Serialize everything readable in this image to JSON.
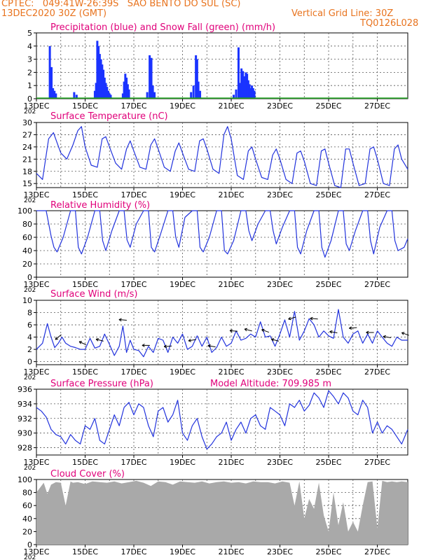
{
  "header": {
    "line1": "CPTEC:   049:41W-26:39S   SAO BENTO DO SUL (SC)",
    "line2": "13DEC2020 30Z (GMT)",
    "grid_note": "Vertical Grid Line: 30Z",
    "code": "TQ0126L028"
  },
  "colors": {
    "header": "#e8731e",
    "title": "#e0007a",
    "line": "#2233dd",
    "precip": "#1a33ff",
    "snow": "#1f9e1f",
    "cloud": "#a9a9a9",
    "wind_arrow": "#000000"
  },
  "x_axis": {
    "labels": [
      "13DEC",
      "15DEC",
      "17DEC",
      "19DEC",
      "21DEC",
      "23DEC",
      "25DEC",
      "27DEC"
    ],
    "label_days": [
      0,
      2,
      4,
      6,
      8,
      10,
      12,
      14
    ],
    "gridlines_days": [
      1,
      2,
      3,
      4,
      5,
      6,
      7,
      8,
      9,
      10,
      11,
      12,
      13,
      14
    ],
    "year_label": "202"
  },
  "chart_data": [
    {
      "type": "bar",
      "title": "Precipitation (blue) and Snow Fall (green) (mm/h)",
      "ylim": [
        0,
        5
      ],
      "yticks": [
        "0",
        "1",
        "2",
        "3",
        "4",
        "5"
      ],
      "series": [
        {
          "name": "Precipitation",
          "points": [
            [
              0.55,
              4.0
            ],
            [
              0.62,
              2.4
            ],
            [
              0.68,
              0.8
            ],
            [
              0.74,
              0.6
            ],
            [
              0.8,
              0.4
            ],
            [
              1.55,
              0.5
            ],
            [
              1.65,
              0.3
            ],
            [
              2.4,
              0.6
            ],
            [
              2.45,
              1.2
            ],
            [
              2.5,
              4.4
            ],
            [
              2.55,
              4.0
            ],
            [
              2.6,
              3.4
            ],
            [
              2.65,
              3.0
            ],
            [
              2.7,
              2.6
            ],
            [
              2.75,
              2.2
            ],
            [
              2.8,
              1.6
            ],
            [
              2.85,
              1.2
            ],
            [
              2.9,
              0.9
            ],
            [
              2.95,
              0.6
            ],
            [
              3.0,
              0.4
            ],
            [
              3.05,
              0.3
            ],
            [
              3.55,
              0.4
            ],
            [
              3.6,
              1.3
            ],
            [
              3.65,
              1.9
            ],
            [
              3.7,
              1.6
            ],
            [
              3.75,
              1.1
            ],
            [
              3.8,
              0.7
            ],
            [
              4.55,
              0.5
            ],
            [
              4.65,
              3.3
            ],
            [
              4.72,
              3.1
            ],
            [
              4.78,
              1.0
            ],
            [
              4.85,
              0.5
            ],
            [
              6.35,
              0.5
            ],
            [
              6.45,
              1.0
            ],
            [
              6.55,
              3.3
            ],
            [
              6.6,
              3.0
            ],
            [
              6.65,
              1.3
            ],
            [
              6.72,
              0.6
            ],
            [
              8.1,
              0.3
            ],
            [
              8.2,
              0.7
            ],
            [
              8.3,
              3.9
            ],
            [
              8.35,
              1.2
            ],
            [
              8.42,
              2.3
            ],
            [
              8.48,
              2.1
            ],
            [
              8.55,
              1.7
            ],
            [
              8.6,
              2.0
            ],
            [
              8.65,
              1.9
            ],
            [
              8.7,
              1.4
            ],
            [
              8.75,
              1.1
            ],
            [
              8.8,
              0.8
            ],
            [
              8.85,
              1.0
            ],
            [
              8.9,
              0.8
            ],
            [
              8.95,
              0.6
            ]
          ]
        },
        {
          "name": "Snow Fall",
          "points": []
        }
      ]
    },
    {
      "type": "line",
      "title": "Surface Temperature (nC)",
      "ylim": [
        14,
        30
      ],
      "yticks": [
        "15",
        "18",
        "21",
        "24",
        "27",
        "30"
      ],
      "x": [
        0,
        0.25,
        0.5,
        0.7,
        0.85,
        1.0,
        1.25,
        1.5,
        1.7,
        1.85,
        2.0,
        2.25,
        2.5,
        2.7,
        2.85,
        3.0,
        3.25,
        3.5,
        3.7,
        3.85,
        4.0,
        4.25,
        4.5,
        4.7,
        4.85,
        5.0,
        5.25,
        5.5,
        5.7,
        5.85,
        6.0,
        6.25,
        6.5,
        6.7,
        6.85,
        7.0,
        7.25,
        7.5,
        7.7,
        7.85,
        8.0,
        8.25,
        8.5,
        8.7,
        8.85,
        9.0,
        9.25,
        9.5,
        9.7,
        9.85,
        10.0,
        10.25,
        10.5,
        10.7,
        10.85,
        11.0,
        11.25,
        11.5,
        11.7,
        11.85,
        12.0,
        12.25,
        12.5,
        12.7,
        12.85,
        13.0,
        13.25,
        13.5,
        13.7,
        13.85,
        14.0,
        14.25,
        14.5,
        14.7,
        14.85,
        15.0,
        15.25
      ],
      "values": [
        17.5,
        16.0,
        26.0,
        27.5,
        25.0,
        22.5,
        21.0,
        24.5,
        28.0,
        29.0,
        24.0,
        19.5,
        19.0,
        26.0,
        26.5,
        24.0,
        20.0,
        18.5,
        23.5,
        25.5,
        23.0,
        19.0,
        18.5,
        24.5,
        26.0,
        23.5,
        19.0,
        18.0,
        23.0,
        25.0,
        22.5,
        18.5,
        18.0,
        25.5,
        26.0,
        23.5,
        18.5,
        17.5,
        27.0,
        29.0,
        26.0,
        17.0,
        16.0,
        23.0,
        24.0,
        21.0,
        16.5,
        16.0,
        22.0,
        23.5,
        21.0,
        16.0,
        15.0,
        22.5,
        23.0,
        20.5,
        15.0,
        14.5,
        23.0,
        23.5,
        20.0,
        14.5,
        14.0,
        23.5,
        23.5,
        20.0,
        14.5,
        15.0,
        23.5,
        24.0,
        21.0,
        15.0,
        14.5,
        23.5,
        24.5,
        21.0,
        18.5
      ]
    },
    {
      "type": "line",
      "title": "Relative Humidity (%)",
      "ylim": [
        0,
        100
      ],
      "yticks": [
        "0",
        "20",
        "40",
        "60",
        "80",
        "100"
      ],
      "x": [
        0,
        0.4,
        0.6,
        0.72,
        0.85,
        1.1,
        1.4,
        1.6,
        1.72,
        1.85,
        2.1,
        2.4,
        2.6,
        2.72,
        2.85,
        3.1,
        3.4,
        3.6,
        3.72,
        3.85,
        4.1,
        4.4,
        4.6,
        4.72,
        4.85,
        5.1,
        5.4,
        5.6,
        5.72,
        5.85,
        6.1,
        6.4,
        6.6,
        6.72,
        6.85,
        7.1,
        7.4,
        7.6,
        7.72,
        7.85,
        8.1,
        8.4,
        8.6,
        8.72,
        8.85,
        9.1,
        9.4,
        9.6,
        9.72,
        9.85,
        10.1,
        10.4,
        10.6,
        10.72,
        10.85,
        11.1,
        11.4,
        11.6,
        11.72,
        11.85,
        12.1,
        12.4,
        12.6,
        12.72,
        12.85,
        13.1,
        13.4,
        13.6,
        13.72,
        13.85,
        14.1,
        14.4,
        14.6,
        14.72,
        14.85,
        15.1,
        15.25
      ],
      "values": [
        100,
        100,
        62,
        45,
        38,
        60,
        100,
        100,
        45,
        35,
        60,
        100,
        100,
        55,
        40,
        70,
        100,
        100,
        56,
        45,
        80,
        100,
        100,
        45,
        38,
        65,
        100,
        100,
        60,
        45,
        90,
        100,
        100,
        45,
        38,
        60,
        100,
        100,
        40,
        35,
        55,
        100,
        100,
        70,
        55,
        80,
        100,
        100,
        70,
        50,
        75,
        100,
        100,
        45,
        35,
        70,
        100,
        100,
        45,
        30,
        55,
        100,
        100,
        50,
        40,
        70,
        100,
        100,
        55,
        35,
        75,
        100,
        100,
        55,
        40,
        45,
        58
      ]
    },
    {
      "type": "line",
      "title": "Surface Wind (m/s)",
      "ylim": [
        -0.5,
        10
      ],
      "yticks": [
        "0",
        "2",
        "4",
        "6",
        "8",
        "10"
      ],
      "x": [
        0,
        0.25,
        0.45,
        0.6,
        0.75,
        0.9,
        1.05,
        1.2,
        1.4,
        1.6,
        1.8,
        2.0,
        2.2,
        2.4,
        2.6,
        2.8,
        3.0,
        3.2,
        3.4,
        3.55,
        3.7,
        3.85,
        4.0,
        4.2,
        4.4,
        4.6,
        4.8,
        5.0,
        5.2,
        5.4,
        5.6,
        5.8,
        6.0,
        6.2,
        6.4,
        6.6,
        6.8,
        7.0,
        7.2,
        7.4,
        7.6,
        7.8,
        8.0,
        8.2,
        8.4,
        8.6,
        8.8,
        9.0,
        9.2,
        9.4,
        9.6,
        9.8,
        10.0,
        10.2,
        10.4,
        10.6,
        10.8,
        11.0,
        11.2,
        11.4,
        11.6,
        11.8,
        12.0,
        12.2,
        12.4,
        12.6,
        12.8,
        13.0,
        13.2,
        13.4,
        13.6,
        13.8,
        14.0,
        14.2,
        14.4,
        14.6,
        14.8,
        15.0,
        15.25
      ],
      "values": [
        2.0,
        3.0,
        6.2,
        4.0,
        2.3,
        3.0,
        4.0,
        3.0,
        2.5,
        2.3,
        2.0,
        2.0,
        3.8,
        2.2,
        2.5,
        4.5,
        2.8,
        1.0,
        2.5,
        5.8,
        1.5,
        3.5,
        2.0,
        1.8,
        0.8,
        2.5,
        1.5,
        3.8,
        3.5,
        1.5,
        4.0,
        3.0,
        4.5,
        2.0,
        2.5,
        4.2,
        2.5,
        4.0,
        1.5,
        2.3,
        4.0,
        2.5,
        3.0,
        5.0,
        3.5,
        3.8,
        4.5,
        4.0,
        6.5,
        4.0,
        4.2,
        2.5,
        4.5,
        6.8,
        4.0,
        8.2,
        3.5,
        5.0,
        7.0,
        6.0,
        4.0,
        5.0,
        4.2,
        3.8,
        8.5,
        4.0,
        3.0,
        4.5,
        5.0,
        3.0,
        4.5,
        3.0,
        5.0,
        4.0,
        3.0,
        2.5,
        4.0,
        3.5,
        3.5
      ],
      "arrows": [
        [
          0.9,
          -40
        ],
        [
          1.9,
          25
        ],
        [
          2.6,
          15
        ],
        [
          3.55,
          5
        ],
        [
          4.5,
          0
        ],
        [
          5.4,
          -5
        ],
        [
          6.4,
          -10
        ],
        [
          7.2,
          10
        ],
        [
          8.1,
          5
        ],
        [
          8.7,
          15
        ],
        [
          9.4,
          20
        ],
        [
          9.8,
          15
        ],
        [
          10.5,
          -15
        ],
        [
          11.4,
          5
        ],
        [
          12.2,
          10
        ],
        [
          13.0,
          -5
        ],
        [
          13.7,
          0
        ],
        [
          14.4,
          10
        ],
        [
          15.15,
          20
        ]
      ],
      "arrow_note": "wind direction arrows: [day, angle in degrees counter-clockwise from west-pointing]"
    },
    {
      "type": "line",
      "title": "Surface Pressure (hPa)",
      "annotation": "Model Altitude: 709.985  m",
      "ylim": [
        927,
        936
      ],
      "yticks": [
        "928",
        "930",
        "932",
        "934",
        "936"
      ],
      "x": [
        0,
        0.2,
        0.4,
        0.6,
        0.8,
        1.0,
        1.2,
        1.4,
        1.6,
        1.8,
        2.0,
        2.2,
        2.4,
        2.6,
        2.8,
        3.0,
        3.2,
        3.4,
        3.6,
        3.8,
        4.0,
        4.2,
        4.4,
        4.6,
        4.8,
        5.0,
        5.2,
        5.4,
        5.6,
        5.8,
        6.0,
        6.2,
        6.4,
        6.6,
        6.8,
        7.0,
        7.2,
        7.4,
        7.6,
        7.8,
        8.0,
        8.2,
        8.4,
        8.6,
        8.8,
        9.0,
        9.2,
        9.4,
        9.6,
        9.8,
        10.0,
        10.2,
        10.4,
        10.6,
        10.8,
        11.0,
        11.2,
        11.4,
        11.6,
        11.8,
        12.0,
        12.2,
        12.4,
        12.6,
        12.8,
        13.0,
        13.2,
        13.4,
        13.6,
        13.8,
        14.0,
        14.2,
        14.4,
        14.6,
        14.8,
        15.0,
        15.25
      ],
      "values": [
        933.5,
        933.0,
        932.2,
        930.5,
        929.8,
        929.5,
        928.5,
        929.8,
        929.0,
        928.5,
        931.0,
        930.5,
        932.0,
        929.0,
        928.5,
        930.5,
        932.5,
        931.0,
        933.5,
        934.2,
        932.5,
        934.0,
        933.5,
        931.0,
        929.5,
        933.0,
        933.5,
        931.5,
        932.5,
        934.5,
        930.0,
        929.0,
        931.0,
        932.0,
        929.5,
        927.8,
        928.5,
        929.5,
        930.0,
        931.5,
        929.0,
        930.5,
        931.5,
        930.0,
        932.0,
        932.5,
        931.0,
        930.5,
        933.5,
        933.0,
        932.5,
        931.0,
        934.0,
        933.5,
        934.5,
        933.0,
        933.8,
        935.5,
        934.8,
        933.5,
        935.8,
        935.0,
        934.0,
        935.5,
        934.8,
        933.0,
        932.5,
        934.5,
        933.5,
        930.0,
        931.5,
        930.0,
        931.0,
        930.5,
        929.5,
        928.5,
        930.5
      ]
    },
    {
      "type": "area",
      "title": "Cloud Cover (%)",
      "ylim": [
        0,
        100
      ],
      "yticks": [
        "0",
        "20",
        "40",
        "60",
        "80",
        "100"
      ],
      "x": [
        0,
        0.3,
        0.45,
        0.6,
        0.8,
        1.0,
        1.2,
        1.4,
        1.5,
        1.7,
        2.0,
        2.3,
        2.6,
        2.9,
        3.2,
        3.5,
        3.8,
        4.1,
        4.4,
        4.7,
        5.0,
        5.3,
        5.6,
        5.9,
        6.2,
        6.5,
        6.8,
        7.1,
        7.4,
        7.7,
        8.0,
        8.3,
        8.6,
        8.9,
        9.2,
        9.5,
        9.8,
        10.1,
        10.4,
        10.6,
        10.8,
        11.0,
        11.2,
        11.4,
        11.6,
        11.8,
        12.0,
        12.2,
        12.4,
        12.6,
        12.8,
        13.0,
        13.2,
        13.4,
        13.6,
        13.8,
        14.0,
        14.2,
        14.4,
        14.6,
        14.8,
        15.0,
        15.25
      ],
      "values": [
        80,
        95,
        78,
        92,
        96,
        95,
        60,
        97,
        95,
        96,
        93,
        97,
        96,
        95,
        97,
        94,
        96,
        98,
        95,
        90,
        97,
        96,
        92,
        97,
        96,
        95,
        97,
        94,
        96,
        97,
        95,
        96,
        94,
        97,
        96,
        96,
        94,
        97,
        95,
        60,
        97,
        40,
        70,
        55,
        95,
        45,
        20,
        80,
        30,
        65,
        20,
        35,
        20,
        60,
        96,
        97,
        25,
        98,
        96,
        97,
        96,
        97,
        96
      ]
    }
  ]
}
